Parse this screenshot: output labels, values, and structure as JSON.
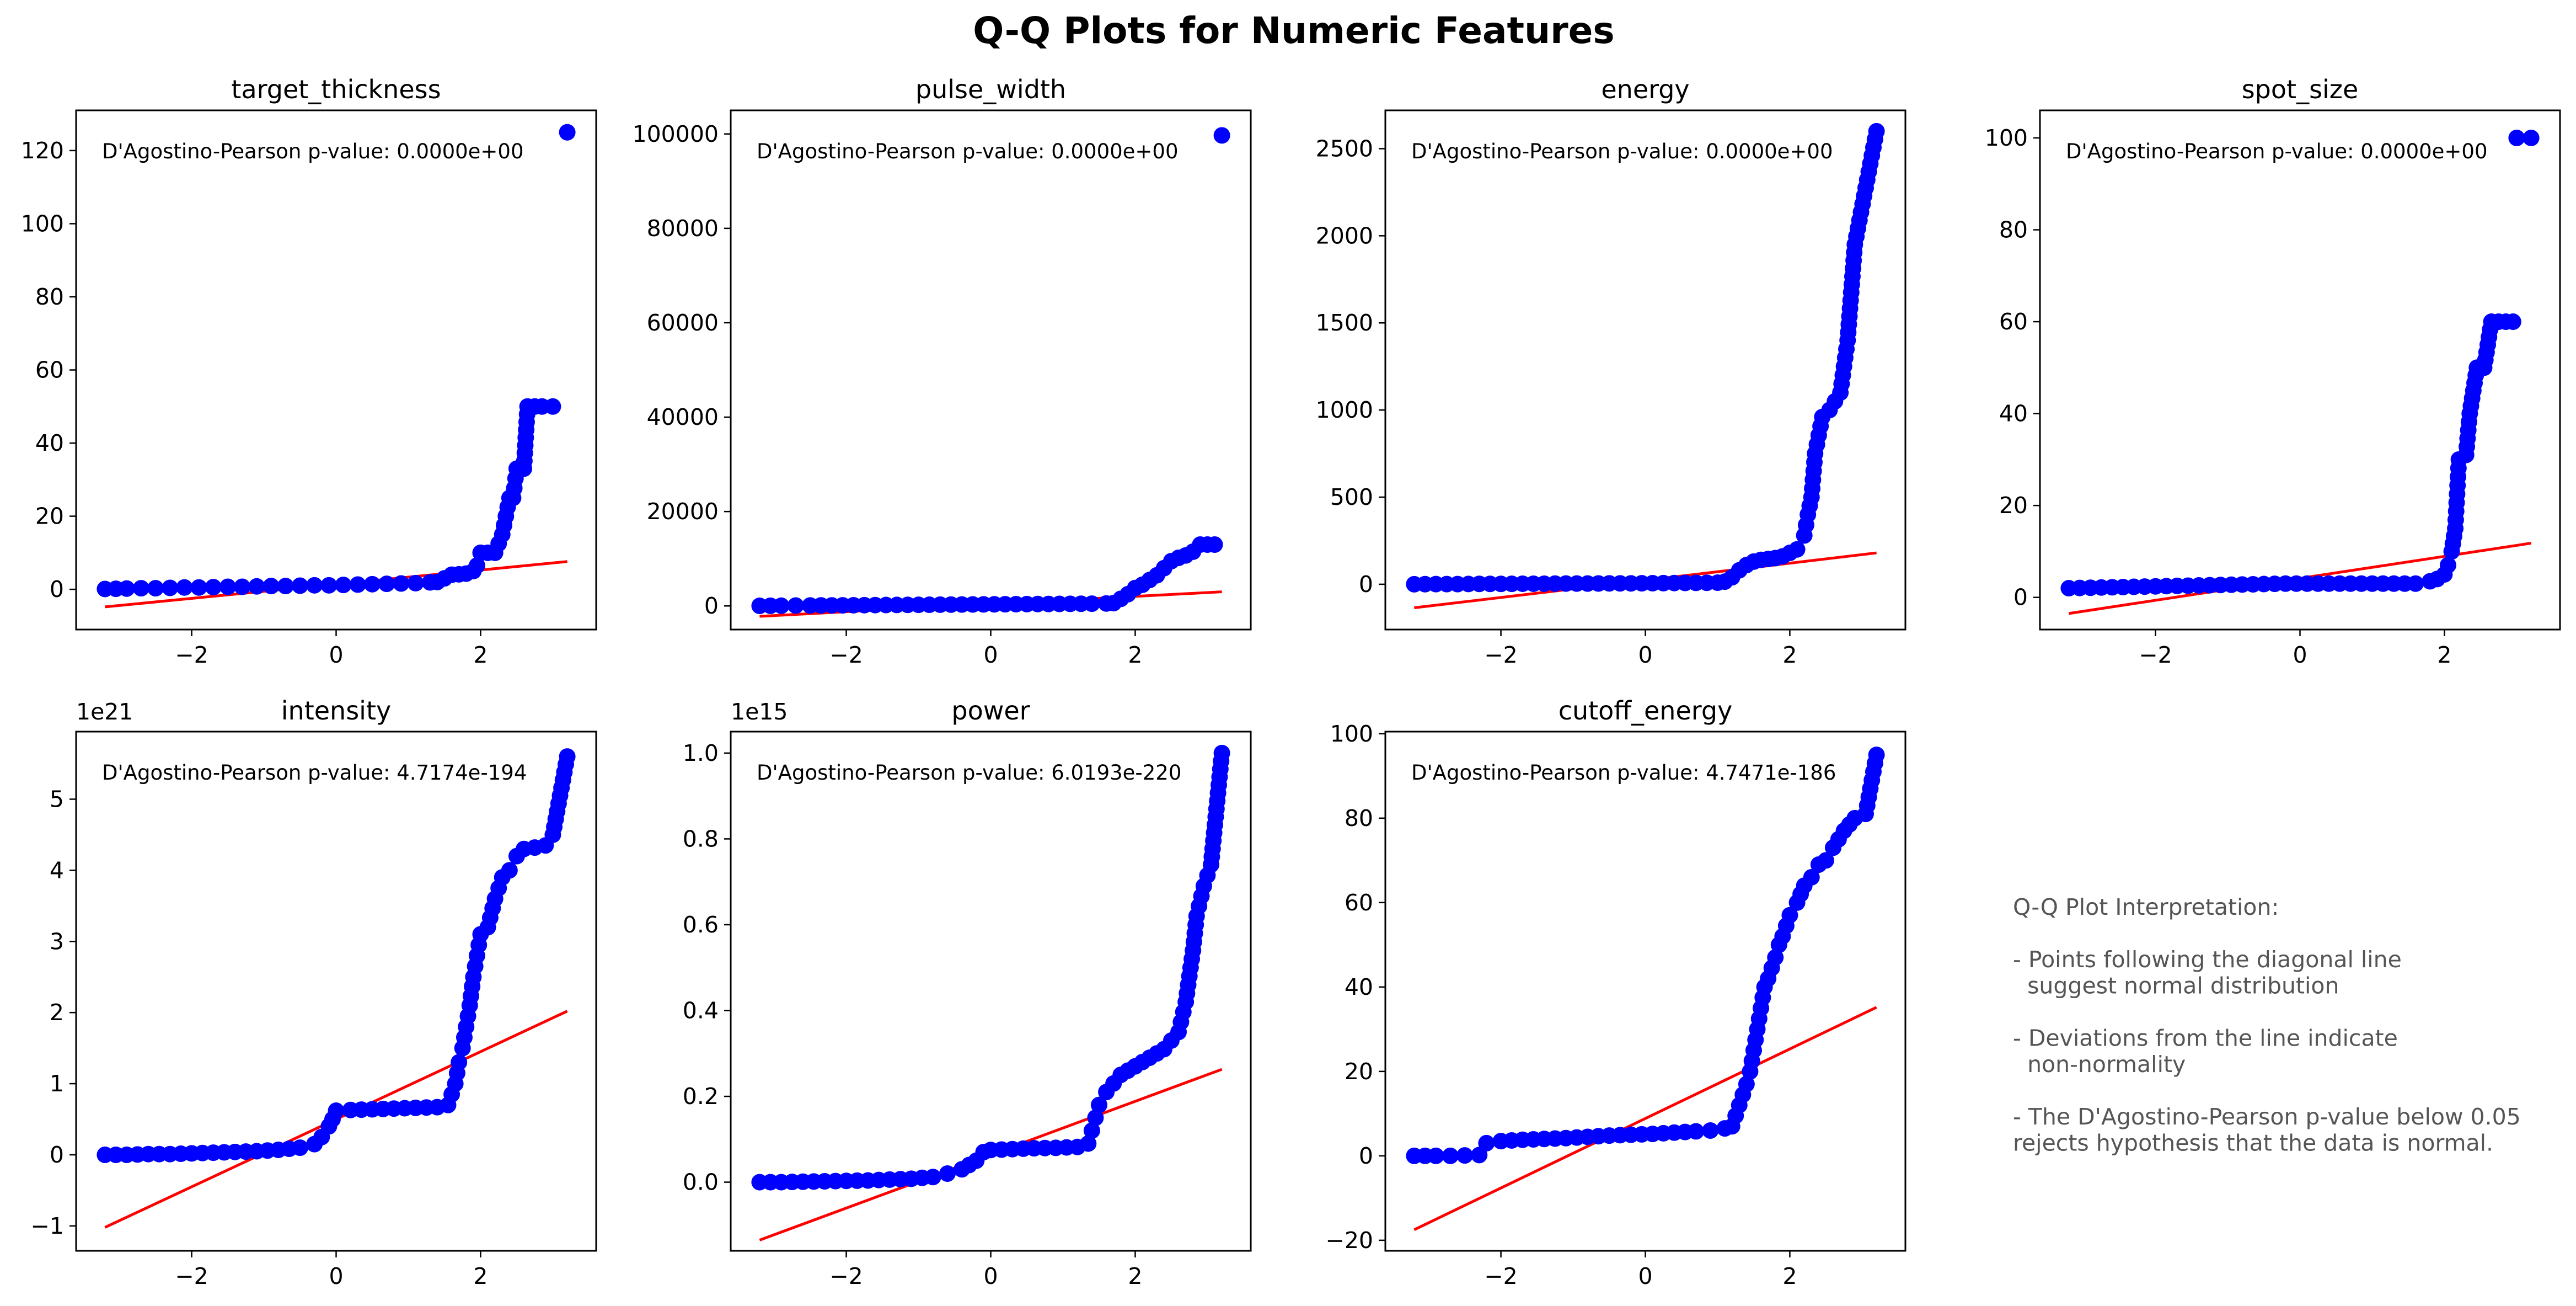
{
  "figure": {
    "title": "Q-Q Plots for Numeric Features",
    "point_color": "#0000ff",
    "line_color": "#ff0000",
    "text_color": "#555555",
    "interpretation": [
      "Q-Q Plot Interpretation:",
      "",
      "- Points following the diagonal line",
      "  suggest normal distribution",
      "",
      "- Deviations from the line indicate",
      "  non-normality",
      "",
      "- The D'Agostino-Pearson p-value below 0.05",
      "rejects hypothesis that the data is normal."
    ]
  },
  "chart_data": [
    {
      "type": "scatter",
      "title": "target_thickness",
      "annotation": "D'Agostino-Pearson p-value: 0.0000e+00",
      "offset_text": "",
      "xlim": [
        -3.6,
        3.6
      ],
      "ylim": [
        -11,
        131
      ],
      "xticks": [
        -2,
        0,
        2
      ],
      "xtick_labels": [
        "−2",
        "0",
        "2"
      ],
      "yticks": [
        0,
        20,
        40,
        60,
        80,
        100,
        120
      ],
      "ytick_labels": [
        "0",
        "20",
        "40",
        "60",
        "80",
        "100",
        "120"
      ],
      "fit_line": [
        [
          -3.2,
          -4.8
        ],
        [
          3.2,
          7.6
        ]
      ],
      "points": [
        [
          -3.2,
          0.1
        ],
        [
          -2.9,
          0.2
        ],
        [
          -2.7,
          0.3
        ],
        [
          -2.5,
          0.3
        ],
        [
          -2.3,
          0.4
        ],
        [
          -2.1,
          0.5
        ],
        [
          -1.9,
          0.5
        ],
        [
          -1.7,
          0.6
        ],
        [
          -1.5,
          0.7
        ],
        [
          -1.3,
          0.7
        ],
        [
          -1.1,
          0.8
        ],
        [
          -0.9,
          0.9
        ],
        [
          -0.7,
          0.9
        ],
        [
          -0.5,
          1.0
        ],
        [
          -0.3,
          1.1
        ],
        [
          -0.1,
          1.1
        ],
        [
          0.1,
          1.2
        ],
        [
          0.3,
          1.3
        ],
        [
          0.5,
          1.4
        ],
        [
          0.7,
          1.5
        ],
        [
          0.9,
          1.6
        ],
        [
          1.1,
          1.7
        ],
        [
          1.3,
          1.9
        ],
        [
          1.4,
          2.0
        ],
        [
          1.5,
          3.0
        ],
        [
          1.6,
          4.0
        ],
        [
          1.7,
          4.1
        ],
        [
          1.8,
          4.3
        ],
        [
          1.9,
          5.0
        ],
        [
          1.95,
          6.5
        ],
        [
          2.0,
          10.0
        ],
        [
          2.1,
          10.0
        ],
        [
          2.2,
          10.0
        ],
        [
          2.3,
          15.0
        ],
        [
          2.35,
          20.0
        ],
        [
          2.4,
          25.0
        ],
        [
          2.45,
          25.0
        ],
        [
          2.5,
          33.0
        ],
        [
          2.55,
          33.0
        ],
        [
          2.6,
          33.0
        ],
        [
          2.65,
          50.0
        ],
        [
          2.75,
          50.0
        ],
        [
          2.85,
          50.0
        ],
        [
          3.0,
          50.0
        ],
        [
          3.2,
          125.0
        ]
      ]
    },
    {
      "type": "scatter",
      "title": "pulse_width",
      "annotation": "D'Agostino-Pearson p-value: 0.0000e+00",
      "offset_text": "",
      "xlim": [
        -3.6,
        3.6
      ],
      "ylim": [
        -5000,
        105000
      ],
      "xticks": [
        -2,
        0,
        2
      ],
      "xtick_labels": [
        "−2",
        "0",
        "2"
      ],
      "yticks": [
        0,
        20000,
        40000,
        60000,
        80000,
        100000
      ],
      "ytick_labels": [
        "0",
        "20000",
        "40000",
        "60000",
        "80000",
        "100000"
      ],
      "fit_line": [
        [
          -3.2,
          -2200
        ],
        [
          3.2,
          3000
        ]
      ],
      "points": [
        [
          -3.2,
          30
        ],
        [
          -2.9,
          50
        ],
        [
          -2.7,
          80
        ],
        [
          -2.5,
          100
        ],
        [
          -2.2,
          120
        ],
        [
          -1.9,
          150
        ],
        [
          -1.6,
          180
        ],
        [
          -1.3,
          210
        ],
        [
          -1.0,
          240
        ],
        [
          -0.7,
          270
        ],
        [
          -0.4,
          300
        ],
        [
          -0.1,
          330
        ],
        [
          0.2,
          360
        ],
        [
          0.5,
          390
        ],
        [
          0.8,
          420
        ],
        [
          1.1,
          450
        ],
        [
          1.4,
          480
        ],
        [
          1.6,
          520
        ],
        [
          1.7,
          600
        ],
        [
          1.8,
          1500
        ],
        [
          1.9,
          2500
        ],
        [
          2.0,
          3800
        ],
        [
          2.1,
          4500
        ],
        [
          2.2,
          5500
        ],
        [
          2.3,
          6500
        ],
        [
          2.4,
          8000
        ],
        [
          2.5,
          9500
        ],
        [
          2.6,
          10200
        ],
        [
          2.7,
          10700
        ],
        [
          2.8,
          11500
        ],
        [
          2.9,
          13000
        ],
        [
          3.0,
          13000
        ],
        [
          3.1,
          13000
        ],
        [
          3.2,
          99700
        ]
      ]
    },
    {
      "type": "scatter",
      "title": "energy",
      "annotation": "D'Agostino-Pearson p-value: 0.0000e+00",
      "offset_text": "",
      "xlim": [
        -3.6,
        3.6
      ],
      "ylim": [
        -260,
        2720
      ],
      "xticks": [
        -2,
        0,
        2
      ],
      "xtick_labels": [
        "−2",
        "0",
        "2"
      ],
      "yticks": [
        0,
        500,
        1000,
        1500,
        2000,
        2500
      ],
      "ytick_labels": [
        "0",
        "500",
        "1000",
        "1500",
        "2000",
        "2500"
      ],
      "fit_line": [
        [
          -3.2,
          -135
        ],
        [
          3.2,
          180
        ]
      ],
      "points": [
        [
          -3.2,
          0
        ],
        [
          -2.9,
          1
        ],
        [
          -2.6,
          1
        ],
        [
          -2.3,
          2
        ],
        [
          -2.0,
          2
        ],
        [
          -1.7,
          3
        ],
        [
          -1.4,
          3
        ],
        [
          -1.1,
          4
        ],
        [
          -0.8,
          4
        ],
        [
          -0.5,
          5
        ],
        [
          -0.2,
          5
        ],
        [
          0.1,
          6
        ],
        [
          0.4,
          7
        ],
        [
          0.7,
          8
        ],
        [
          1.0,
          9
        ],
        [
          1.1,
          15
        ],
        [
          1.2,
          40
        ],
        [
          1.3,
          80
        ],
        [
          1.4,
          110
        ],
        [
          1.5,
          130
        ],
        [
          1.6,
          140
        ],
        [
          1.7,
          145
        ],
        [
          1.8,
          150
        ],
        [
          1.9,
          160
        ],
        [
          2.0,
          180
        ],
        [
          2.1,
          200
        ],
        [
          2.2,
          280
        ],
        [
          2.25,
          400
        ],
        [
          2.3,
          500
        ],
        [
          2.35,
          750
        ],
        [
          2.45,
          960
        ],
        [
          2.55,
          1000
        ],
        [
          2.7,
          1100
        ],
        [
          2.8,
          1400
        ],
        [
          2.9,
          1950
        ],
        [
          3.2,
          2600
        ]
      ]
    },
    {
      "type": "scatter",
      "title": "spot_size",
      "annotation": "D'Agostino-Pearson p-value: 0.0000e+00",
      "offset_text": "",
      "xlim": [
        -3.6,
        3.6
      ],
      "ylim": [
        -7,
        106
      ],
      "xticks": [
        -2,
        0,
        2
      ],
      "xtick_labels": [
        "−2",
        "0",
        "2"
      ],
      "yticks": [
        0,
        20,
        40,
        60,
        80,
        100
      ],
      "ytick_labels": [
        "0",
        "20",
        "40",
        "60",
        "80",
        "100"
      ],
      "fit_line": [
        [
          -3.2,
          -3.5
        ],
        [
          3.2,
          11.8
        ]
      ],
      "points": [
        [
          -3.2,
          2.0
        ],
        [
          -2.9,
          2.1
        ],
        [
          -2.6,
          2.2
        ],
        [
          -2.3,
          2.3
        ],
        [
          -2.0,
          2.4
        ],
        [
          -1.7,
          2.5
        ],
        [
          -1.4,
          2.6
        ],
        [
          -1.1,
          2.7
        ],
        [
          -0.8,
          2.8
        ],
        [
          -0.5,
          2.9
        ],
        [
          -0.2,
          3.0
        ],
        [
          0.1,
          3.0
        ],
        [
          0.4,
          3.0
        ],
        [
          0.7,
          3.0
        ],
        [
          1.0,
          3.0
        ],
        [
          1.3,
          3.0
        ],
        [
          1.6,
          3.0
        ],
        [
          1.8,
          3.5
        ],
        [
          1.9,
          4.0
        ],
        [
          2.0,
          5.0
        ],
        [
          2.05,
          7.0
        ],
        [
          2.1,
          10.0
        ],
        [
          2.15,
          15.0
        ],
        [
          2.2,
          30.0
        ],
        [
          2.3,
          31.0
        ],
        [
          2.35,
          40.0
        ],
        [
          2.45,
          50.0
        ],
        [
          2.55,
          50.0
        ],
        [
          2.65,
          60.0
        ],
        [
          2.75,
          60.0
        ],
        [
          2.85,
          60.0
        ],
        [
          2.95,
          60.0
        ],
        [
          3.0,
          100.0
        ],
        [
          3.2,
          100.0
        ]
      ]
    },
    {
      "type": "scatter",
      "title": "intensity",
      "annotation": "D'Agostino-Pearson p-value: 4.7174e-194",
      "offset_text": "1e21",
      "xlim": [
        -3.6,
        3.6
      ],
      "ylim": [
        -1.35,
        5.95
      ],
      "xticks": [
        -2,
        0,
        2
      ],
      "xtick_labels": [
        "−2",
        "0",
        "2"
      ],
      "yticks": [
        -1,
        0,
        1,
        2,
        3,
        4,
        5
      ],
      "ytick_labels": [
        "−1",
        "0",
        "1",
        "2",
        "3",
        "4",
        "5"
      ],
      "fit_line": [
        [
          -3.2,
          -1.02
        ],
        [
          3.2,
          2.02
        ]
      ],
      "points": [
        [
          -3.2,
          0.0
        ],
        [
          -2.9,
          0.0
        ],
        [
          -2.6,
          0.01
        ],
        [
          -2.3,
          0.01
        ],
        [
          -2.0,
          0.02
        ],
        [
          -1.7,
          0.03
        ],
        [
          -1.4,
          0.04
        ],
        [
          -1.1,
          0.05
        ],
        [
          -0.8,
          0.07
        ],
        [
          -0.5,
          0.1
        ],
        [
          -0.3,
          0.15
        ],
        [
          -0.2,
          0.25
        ],
        [
          -0.1,
          0.4
        ],
        [
          -0.05,
          0.5
        ],
        [
          0.0,
          0.62
        ],
        [
          0.2,
          0.63
        ],
        [
          0.5,
          0.64
        ],
        [
          0.8,
          0.65
        ],
        [
          1.1,
          0.66
        ],
        [
          1.4,
          0.67
        ],
        [
          1.55,
          0.7
        ],
        [
          1.6,
          0.85
        ],
        [
          1.65,
          1.0
        ],
        [
          1.7,
          1.3
        ],
        [
          1.75,
          1.5
        ],
        [
          1.8,
          1.8
        ],
        [
          1.85,
          2.1
        ],
        [
          1.9,
          2.5
        ],
        [
          1.95,
          2.8
        ],
        [
          2.0,
          3.1
        ],
        [
          2.1,
          3.2
        ],
        [
          2.2,
          3.6
        ],
        [
          2.3,
          3.9
        ],
        [
          2.4,
          4.0
        ],
        [
          2.5,
          4.2
        ],
        [
          2.6,
          4.3
        ],
        [
          2.75,
          4.32
        ],
        [
          2.9,
          4.35
        ],
        [
          3.0,
          4.5
        ],
        [
          3.2,
          5.6
        ]
      ]
    },
    {
      "type": "scatter",
      "title": "power",
      "annotation": "D'Agostino-Pearson p-value: 6.0193e-220",
      "offset_text": "1e15",
      "xlim": [
        -3.6,
        3.6
      ],
      "ylim": [
        -0.16,
        1.05
      ],
      "xticks": [
        -2,
        0,
        2
      ],
      "xtick_labels": [
        "−2",
        "0",
        "2"
      ],
      "yticks": [
        0,
        0.2,
        0.4,
        0.6,
        0.8,
        1.0
      ],
      "ytick_labels": [
        "0.0",
        "0.2",
        "0.4",
        "0.6",
        "0.8",
        "1.0"
      ],
      "fit_line": [
        [
          -3.2,
          -0.135
        ],
        [
          3.2,
          0.263
        ]
      ],
      "points": [
        [
          -3.2,
          0.0
        ],
        [
          -2.9,
          0.0
        ],
        [
          -2.6,
          0.001
        ],
        [
          -2.3,
          0.002
        ],
        [
          -2.0,
          0.003
        ],
        [
          -1.7,
          0.004
        ],
        [
          -1.4,
          0.006
        ],
        [
          -1.1,
          0.008
        ],
        [
          -0.8,
          0.012
        ],
        [
          -0.6,
          0.02
        ],
        [
          -0.4,
          0.03
        ],
        [
          -0.2,
          0.05
        ],
        [
          -0.1,
          0.07
        ],
        [
          0.0,
          0.075
        ],
        [
          0.3,
          0.077
        ],
        [
          0.6,
          0.079
        ],
        [
          0.9,
          0.08
        ],
        [
          1.2,
          0.082
        ],
        [
          1.35,
          0.09
        ],
        [
          1.4,
          0.12
        ],
        [
          1.45,
          0.15
        ],
        [
          1.5,
          0.18
        ],
        [
          1.6,
          0.21
        ],
        [
          1.7,
          0.23
        ],
        [
          1.8,
          0.25
        ],
        [
          1.9,
          0.26
        ],
        [
          2.0,
          0.27
        ],
        [
          2.1,
          0.28
        ],
        [
          2.2,
          0.29
        ],
        [
          2.3,
          0.3
        ],
        [
          2.4,
          0.31
        ],
        [
          2.5,
          0.33
        ],
        [
          2.6,
          0.35
        ],
        [
          2.7,
          0.42
        ],
        [
          2.8,
          0.54
        ],
        [
          2.85,
          0.62
        ],
        [
          2.95,
          0.69
        ],
        [
          3.05,
          0.74
        ],
        [
          3.2,
          1.0
        ]
      ]
    },
    {
      "type": "scatter",
      "title": "cutoff_energy",
      "annotation": "D'Agostino-Pearson p-value: 4.7471e-186",
      "offset_text": "",
      "xlim": [
        -3.6,
        3.6
      ],
      "ylim": [
        -22.5,
        100.5
      ],
      "xticks": [
        -2,
        0,
        2
      ],
      "xtick_labels": [
        "−2",
        "0",
        "2"
      ],
      "yticks": [
        -20,
        0,
        20,
        40,
        60,
        80,
        100
      ],
      "ytick_labels": [
        "−20",
        "0",
        "20",
        "40",
        "60",
        "80",
        "100"
      ],
      "fit_line": [
        [
          -3.2,
          -17.5
        ],
        [
          3.2,
          35.2
        ]
      ],
      "points": [
        [
          -3.2,
          0.0
        ],
        [
          -2.9,
          0.0
        ],
        [
          -2.7,
          0.0
        ],
        [
          -2.5,
          0.1
        ],
        [
          -2.3,
          0.2
        ],
        [
          -2.2,
          3.0
        ],
        [
          -2.0,
          3.5
        ],
        [
          -1.7,
          3.8
        ],
        [
          -1.4,
          4.0
        ],
        [
          -1.1,
          4.2
        ],
        [
          -0.8,
          4.5
        ],
        [
          -0.5,
          4.8
        ],
        [
          -0.2,
          5.0
        ],
        [
          0.1,
          5.2
        ],
        [
          0.4,
          5.5
        ],
        [
          0.7,
          5.8
        ],
        [
          0.9,
          6.0
        ],
        [
          1.1,
          6.5
        ],
        [
          1.2,
          7.0
        ],
        [
          1.3,
          12.0
        ],
        [
          1.4,
          17.0
        ],
        [
          1.45,
          20.0
        ],
        [
          1.5,
          25.0
        ],
        [
          1.55,
          30.0
        ],
        [
          1.6,
          35.0
        ],
        [
          1.65,
          40.0
        ],
        [
          1.7,
          42.0
        ],
        [
          1.8,
          47.0
        ],
        [
          1.85,
          50.0
        ],
        [
          1.9,
          52.0
        ],
        [
          2.0,
          57.0
        ],
        [
          2.1,
          60.0
        ],
        [
          2.2,
          64.0
        ],
        [
          2.3,
          66.0
        ],
        [
          2.4,
          69.0
        ],
        [
          2.5,
          70.0
        ],
        [
          2.6,
          73.0
        ],
        [
          2.75,
          77.0
        ],
        [
          2.9,
          80.0
        ],
        [
          3.05,
          81.0
        ],
        [
          3.2,
          95.0
        ]
      ]
    }
  ]
}
